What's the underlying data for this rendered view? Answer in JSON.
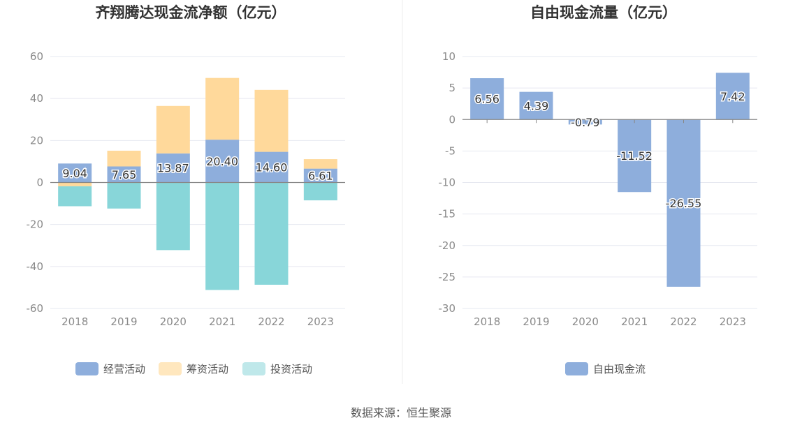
{
  "colors": {
    "operating": "#8eaedc",
    "financing": "#ffd99b",
    "investing": "#88d6d9",
    "fcf": "#8eaedc",
    "grid": "#e6e8f0",
    "zero": "#888888"
  },
  "source": "数据来源：恒生聚源",
  "chart_data": [
    {
      "type": "bar",
      "stacked": true,
      "title": "齐翔腾达现金流净额（亿元）",
      "categories": [
        "2018",
        "2019",
        "2020",
        "2021",
        "2022",
        "2023"
      ],
      "ylim": [
        -60,
        60
      ],
      "yticks": [
        60,
        40,
        20,
        0,
        -20,
        -40,
        -60
      ],
      "series": [
        {
          "name": "经营活动",
          "values": [
            9.04,
            7.65,
            13.87,
            20.4,
            14.6,
            6.61
          ],
          "labels": [
            "9.04",
            "7.65",
            "13.87",
            "20.40",
            "14.60",
            "6.61"
          ]
        },
        {
          "name": "筹资活动",
          "values": [
            -1.8,
            7.5,
            22.6,
            29.4,
            29.5,
            4.5
          ]
        },
        {
          "name": "投资活动",
          "values": [
            -9.5,
            -12.4,
            -32.2,
            -51.2,
            -48.7,
            -8.5
          ]
        }
      ],
      "legend_position": "bottom"
    },
    {
      "type": "bar",
      "title": "自由现金流量（亿元）",
      "categories": [
        "2018",
        "2019",
        "2020",
        "2021",
        "2022",
        "2023"
      ],
      "ylim": [
        -30,
        10
      ],
      "yticks": [
        10,
        5,
        0,
        -5,
        -10,
        -15,
        -20,
        -25,
        -30
      ],
      "series": [
        {
          "name": "自由现金流",
          "values": [
            6.56,
            4.39,
            -0.79,
            -11.52,
            -26.55,
            7.42
          ],
          "labels": [
            "6.56",
            "4.39",
            "-0.79",
            "-11.52",
            "-26.55",
            "7.42"
          ]
        }
      ],
      "legend_position": "bottom"
    }
  ]
}
